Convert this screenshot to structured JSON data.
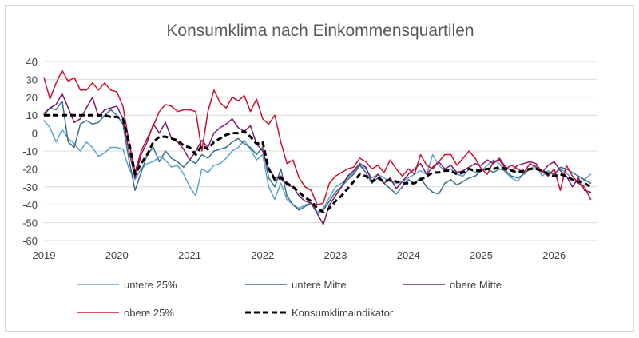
{
  "chart_data": {
    "type": "line",
    "title": "Konsumklima nach Einkommensquartilen",
    "xlabel": "",
    "ylabel": "",
    "ylim": [
      -60,
      40
    ],
    "yticks": [
      40,
      30,
      20,
      10,
      0,
      -10,
      -20,
      -30,
      -40,
      -50,
      -60
    ],
    "xlim": [
      "2019-01",
      "2026-08"
    ],
    "xticks": [
      "2019",
      "2020",
      "2021",
      "2022",
      "2023",
      "2024",
      "2025",
      "2026"
    ],
    "grid": "horizontal",
    "legend_position": "bottom",
    "x": [
      "2019-01",
      "2019-02",
      "2019-03",
      "2019-04",
      "2019-05",
      "2019-06",
      "2019-07",
      "2019-08",
      "2019-09",
      "2019-10",
      "2019-11",
      "2019-12",
      "2020-01",
      "2020-02",
      "2020-03",
      "2020-04",
      "2020-05",
      "2020-06",
      "2020-07",
      "2020-08",
      "2020-09",
      "2020-10",
      "2020-11",
      "2020-12",
      "2021-01",
      "2021-02",
      "2021-03",
      "2021-04",
      "2021-05",
      "2021-06",
      "2021-07",
      "2021-08",
      "2021-09",
      "2021-10",
      "2021-11",
      "2021-12",
      "2022-01",
      "2022-02",
      "2022-03",
      "2022-04",
      "2022-05",
      "2022-06",
      "2022-07",
      "2022-08",
      "2022-09",
      "2022-10",
      "2022-11",
      "2022-12",
      "2023-01",
      "2023-02",
      "2023-03",
      "2023-04",
      "2023-05",
      "2023-06",
      "2023-07",
      "2023-08",
      "2023-09",
      "2023-10",
      "2023-11",
      "2023-12",
      "2024-01",
      "2024-02",
      "2024-03",
      "2024-04",
      "2024-05",
      "2024-06",
      "2024-07",
      "2024-08",
      "2024-09",
      "2024-10",
      "2024-11",
      "2024-12",
      "2025-01",
      "2025-02",
      "2025-03",
      "2025-04",
      "2025-05",
      "2025-06",
      "2025-07",
      "2025-08",
      "2025-09",
      "2025-10",
      "2025-11",
      "2025-12",
      "2026-01",
      "2026-02",
      "2026-03",
      "2026-04",
      "2026-05",
      "2026-06",
      "2026-07"
    ],
    "series": [
      {
        "name": "untere 25%",
        "color": "#5ba3cf",
        "dash": "none",
        "width": 1.5,
        "values": [
          7,
          3,
          -5,
          2,
          -3,
          -6,
          -10,
          -5,
          -8,
          -13,
          -11,
          -8,
          -8,
          -9,
          -20,
          -26,
          -20,
          -17,
          -16,
          -13,
          -15,
          -19,
          -18,
          -23,
          -30,
          -35,
          -20,
          -22,
          -18,
          -17,
          -14,
          -10,
          -8,
          -4,
          -9,
          -15,
          -12,
          -30,
          -37,
          -28,
          -37,
          -40,
          -42,
          -40,
          -39,
          -44,
          -42,
          -36,
          -30,
          -28,
          -25,
          -22,
          -18,
          -20,
          -25,
          -23,
          -25,
          -27,
          -28,
          -27,
          -25,
          -23,
          -21,
          -23,
          -12,
          -18,
          -21,
          -20,
          -23,
          -24,
          -20,
          -22,
          -21,
          -18,
          -15,
          -17,
          -22,
          -25,
          -27,
          -22,
          -20,
          -18,
          -24,
          -21,
          -23,
          -20,
          -22,
          -26,
          -28,
          -26,
          -23
        ]
      },
      {
        "name": "untere Mitte",
        "color": "#3a6f8a",
        "dash": "none",
        "width": 1.5,
        "values": [
          10,
          14,
          13,
          18,
          -5,
          -8,
          5,
          7,
          5,
          6,
          10,
          13,
          10,
          5,
          -15,
          -32,
          -22,
          -12,
          -8,
          -16,
          -10,
          -14,
          -16,
          -19,
          -15,
          -17,
          -12,
          -14,
          -10,
          -9,
          -8,
          -5,
          -3,
          -6,
          -8,
          -12,
          -8,
          -25,
          -30,
          -20,
          -35,
          -40,
          -43,
          -41,
          -39,
          -45,
          -43,
          -38,
          -33,
          -30,
          -26,
          -23,
          -18,
          -22,
          -28,
          -25,
          -28,
          -31,
          -34,
          -30,
          -26,
          -28,
          -25,
          -30,
          -33,
          -34,
          -28,
          -26,
          -29,
          -27,
          -25,
          -24,
          -21,
          -20,
          -22,
          -20,
          -21,
          -24,
          -25,
          -23,
          -20,
          -20,
          -21,
          -22,
          -23,
          -19,
          -20,
          -22,
          -24,
          -26,
          -28
        ]
      },
      {
        "name": "obere Mitte",
        "color": "#7b1a6e",
        "dash": "none",
        "width": 1.5,
        "values": [
          11,
          14,
          16,
          22,
          14,
          6,
          8,
          14,
          20,
          9,
          13,
          14,
          15,
          8,
          -10,
          -25,
          -12,
          -5,
          5,
          0,
          6,
          -3,
          -5,
          -9,
          -15,
          -10,
          -4,
          -8,
          0,
          3,
          5,
          8,
          3,
          1,
          4,
          -6,
          -10,
          -20,
          -25,
          -24,
          -29,
          -30,
          -35,
          -38,
          -39,
          -45,
          -51,
          -40,
          -35,
          -30,
          -24,
          -21,
          -17,
          -19,
          -27,
          -23,
          -28,
          -25,
          -31,
          -27,
          -23,
          -20,
          -17,
          -23,
          -19,
          -16,
          -20,
          -18,
          -22,
          -21,
          -19,
          -17,
          -18,
          -15,
          -17,
          -14,
          -19,
          -21,
          -18,
          -17,
          -16,
          -17,
          -22,
          -18,
          -16,
          -21,
          -24,
          -30,
          -25,
          -32,
          -33
        ]
      },
      {
        "name": "obere 25%",
        "color": "#c8102e",
        "dash": "none",
        "width": 1.5,
        "values": [
          31,
          19,
          28,
          35,
          29,
          31,
          24,
          24,
          28,
          24,
          28,
          24,
          23,
          15,
          -5,
          -22,
          -10,
          -3,
          4,
          12,
          16,
          15,
          12,
          13,
          13,
          12,
          -10,
          12,
          24,
          17,
          14,
          20,
          18,
          21,
          12,
          19,
          8,
          5,
          10,
          -5,
          -17,
          -15,
          -25,
          -30,
          -32,
          -40,
          -39,
          -28,
          -24,
          -22,
          -20,
          -19,
          -14,
          -16,
          -20,
          -18,
          -22,
          -15,
          -20,
          -24,
          -20,
          -23,
          -12,
          -18,
          -20,
          -16,
          -12,
          -12,
          -18,
          -14,
          -10,
          -14,
          -20,
          -23,
          -16,
          -15,
          -20,
          -18,
          -20,
          -22,
          -17,
          -19,
          -21,
          -24,
          -20,
          -32,
          -18,
          -24,
          -28,
          -30,
          -37
        ]
      },
      {
        "name": "Konsumklimaindikator",
        "color": "#000000",
        "dash": "7,4",
        "width": 3,
        "values": [
          10,
          10,
          10,
          10,
          10,
          10,
          10,
          10,
          10,
          10,
          10,
          9,
          9,
          8,
          -5,
          -23,
          -17,
          -12,
          -5,
          -2,
          -2,
          -3,
          -4,
          -7,
          -8,
          -12,
          -7,
          -9,
          -5,
          -3,
          -1,
          0,
          0,
          1,
          -2,
          -6,
          -5,
          -20,
          -26,
          -25,
          -28,
          -30,
          -33,
          -36,
          -38,
          -42,
          -44,
          -42,
          -38,
          -35,
          -31,
          -27,
          -23,
          -24,
          -27,
          -25,
          -27,
          -26,
          -27,
          -28,
          -28,
          -28,
          -26,
          -24,
          -22,
          -22,
          -21,
          -21,
          -23,
          -22,
          -20,
          -21,
          -21,
          -20,
          -20,
          -19,
          -20,
          -21,
          -22,
          -21,
          -20,
          -20,
          -21,
          -23,
          -24,
          -23,
          -24,
          -26,
          -27,
          -28,
          -30
        ]
      }
    ]
  }
}
